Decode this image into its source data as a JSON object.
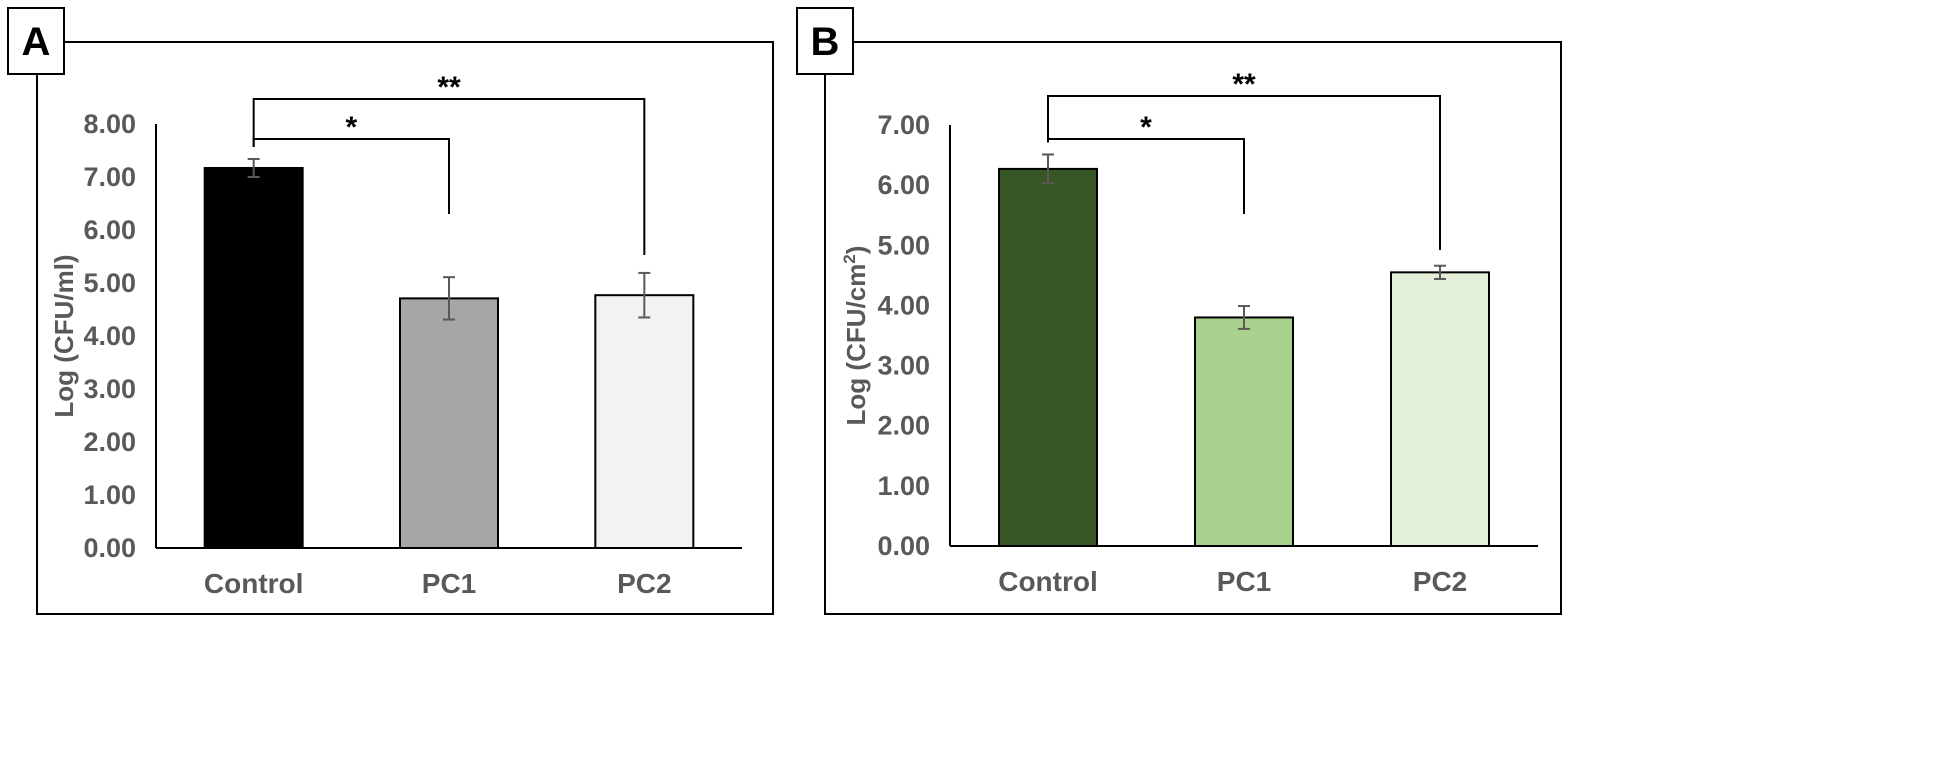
{
  "chart_data": [
    {
      "panel": "A",
      "type": "bar",
      "title": "",
      "xlabel": "",
      "ylabel": "Log (CFU/ml)",
      "ylabel_superscript": "",
      "ylabel_suffix": "",
      "ylim": [
        0,
        8
      ],
      "y_ticks": [
        "0.00",
        "1.00",
        "2.00",
        "3.00",
        "4.00",
        "5.00",
        "6.00",
        "7.00",
        "8.00"
      ],
      "categories": [
        "Control",
        "PC1",
        "PC2"
      ],
      "values": [
        7.17,
        4.71,
        4.77
      ],
      "errors": [
        0.17,
        0.4,
        0.42
      ],
      "colors": [
        "#000000",
        "#a6a6a6",
        "#f2f2f2"
      ],
      "significance": [
        {
          "from": "Control",
          "to": "PC1",
          "label": "*"
        },
        {
          "from": "Control",
          "to": "PC2",
          "label": "**"
        }
      ]
    },
    {
      "panel": "B",
      "type": "bar",
      "title": "",
      "xlabel": "",
      "ylabel": "Log (CFU/cm",
      "ylabel_superscript": "2",
      "ylabel_suffix": ")",
      "ylim": [
        0,
        7
      ],
      "y_ticks": [
        "0.00",
        "1.00",
        "2.00",
        "3.00",
        "4.00",
        "5.00",
        "6.00",
        "7.00"
      ],
      "categories": [
        "Control",
        "PC1",
        "PC2"
      ],
      "values": [
        6.27,
        3.8,
        4.55
      ],
      "errors": [
        0.24,
        0.19,
        0.11
      ],
      "colors": [
        "#375623",
        "#a9d18e",
        "#e2efd9"
      ],
      "significance": [
        {
          "from": "Control",
          "to": "PC1",
          "label": "*"
        },
        {
          "from": "Control",
          "to": "PC2",
          "label": "**"
        }
      ]
    }
  ]
}
